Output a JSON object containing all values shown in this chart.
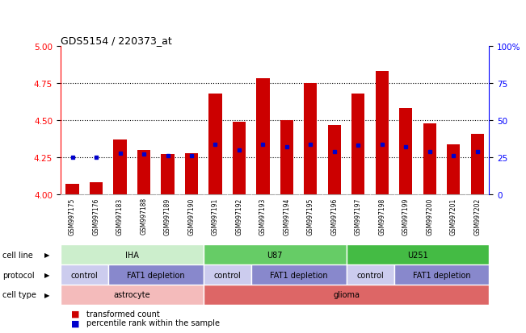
{
  "title": "GDS5154 / 220373_at",
  "samples": [
    "GSM997175",
    "GSM997176",
    "GSM997183",
    "GSM997188",
    "GSM997189",
    "GSM997190",
    "GSM997191",
    "GSM997192",
    "GSM997193",
    "GSM997194",
    "GSM997195",
    "GSM997196",
    "GSM997197",
    "GSM997198",
    "GSM997199",
    "GSM997200",
    "GSM997201",
    "GSM997202"
  ],
  "transformed_count": [
    4.07,
    4.08,
    4.37,
    4.3,
    4.27,
    4.28,
    4.68,
    4.49,
    4.78,
    4.5,
    4.75,
    4.47,
    4.68,
    4.83,
    4.58,
    4.48,
    4.34,
    4.41
  ],
  "percentile_rank": [
    25,
    25,
    28,
    27,
    26,
    26,
    34,
    30,
    34,
    32,
    34,
    29,
    33,
    34,
    32,
    29,
    26,
    29
  ],
  "ylim_left": [
    4.0,
    5.0
  ],
  "ylim_right": [
    0,
    100
  ],
  "y_ticks_left": [
    4.0,
    4.25,
    4.5,
    4.75,
    5.0
  ],
  "y_ticks_right": [
    0,
    25,
    50,
    75,
    100
  ],
  "bar_color": "#cc0000",
  "dot_color": "#0000cc",
  "cell_line_groups": [
    {
      "label": "IHA",
      "start": 0,
      "end": 5,
      "color": "#cceecc"
    },
    {
      "label": "U87",
      "start": 6,
      "end": 11,
      "color": "#66cc66"
    },
    {
      "label": "U251",
      "start": 12,
      "end": 17,
      "color": "#44bb44"
    }
  ],
  "protocol_groups": [
    {
      "label": "control",
      "start": 0,
      "end": 1,
      "color": "#ccccee"
    },
    {
      "label": "FAT1 depletion",
      "start": 2,
      "end": 5,
      "color": "#8888cc"
    },
    {
      "label": "control",
      "start": 6,
      "end": 7,
      "color": "#ccccee"
    },
    {
      "label": "FAT1 depletion",
      "start": 8,
      "end": 11,
      "color": "#8888cc"
    },
    {
      "label": "control",
      "start": 12,
      "end": 13,
      "color": "#ccccee"
    },
    {
      "label": "FAT1 depletion",
      "start": 14,
      "end": 17,
      "color": "#8888cc"
    }
  ],
  "cell_type_groups": [
    {
      "label": "astrocyte",
      "start": 0,
      "end": 5,
      "color": "#f4bbbb"
    },
    {
      "label": "glioma",
      "start": 6,
      "end": 17,
      "color": "#dd6666"
    }
  ],
  "legend_items": [
    {
      "label": "transformed count",
      "color": "#cc0000"
    },
    {
      "label": "percentile rank within the sample",
      "color": "#0000cc"
    }
  ]
}
